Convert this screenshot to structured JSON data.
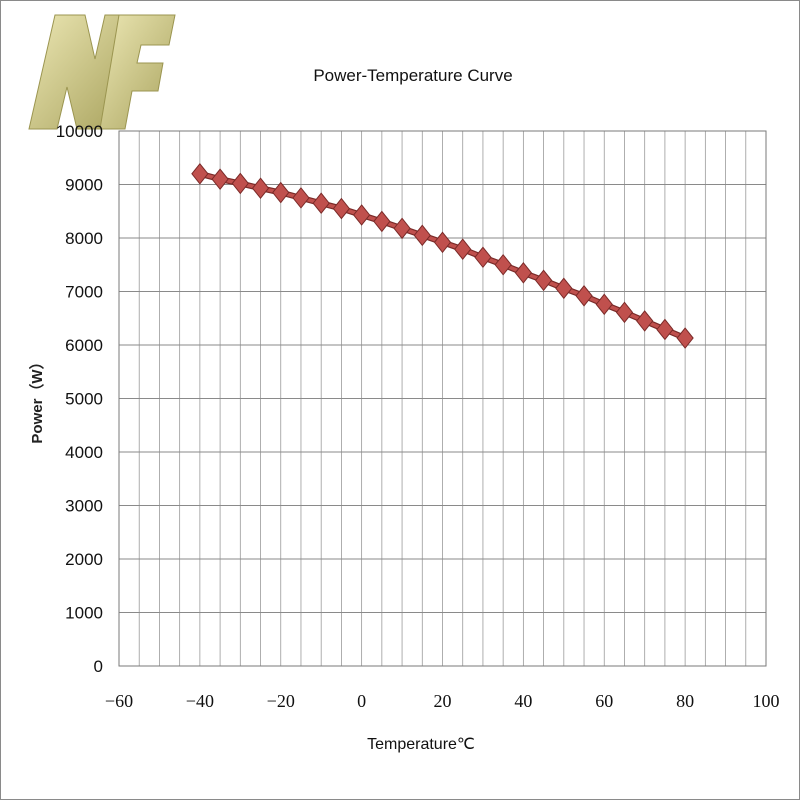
{
  "logo": {
    "text": "NF",
    "colors": [
      "#dcd7a0",
      "#a9a35e"
    ]
  },
  "chart_data": {
    "type": "line",
    "title": "Power-Temperature Curve",
    "xlabel": "Temperature℃",
    "ylabel": "Power（W）",
    "xlim": [
      -60,
      100
    ],
    "ylim": [
      0,
      10000
    ],
    "x_ticks": [
      -60,
      -40,
      -20,
      0,
      20,
      40,
      60,
      80,
      100
    ],
    "y_ticks": [
      0,
      1000,
      2000,
      3000,
      4000,
      5000,
      6000,
      7000,
      8000,
      9000,
      10000
    ],
    "x_minor_grid_step": 5,
    "grid": true,
    "legend": "none",
    "series": [
      {
        "color": "#c0504d",
        "marker": "diamond",
        "x": [
          -40,
          -35,
          -30,
          -25,
          -20,
          -15,
          -10,
          -5,
          0,
          5,
          10,
          15,
          20,
          25,
          30,
          35,
          40,
          45,
          50,
          55,
          60,
          65,
          70,
          75,
          80
        ],
        "y": [
          9200,
          9100,
          9020,
          8930,
          8850,
          8750,
          8650,
          8550,
          8430,
          8310,
          8180,
          8050,
          7920,
          7790,
          7640,
          7500,
          7350,
          7210,
          7060,
          6920,
          6760,
          6610,
          6450,
          6290,
          6130
        ]
      }
    ]
  }
}
